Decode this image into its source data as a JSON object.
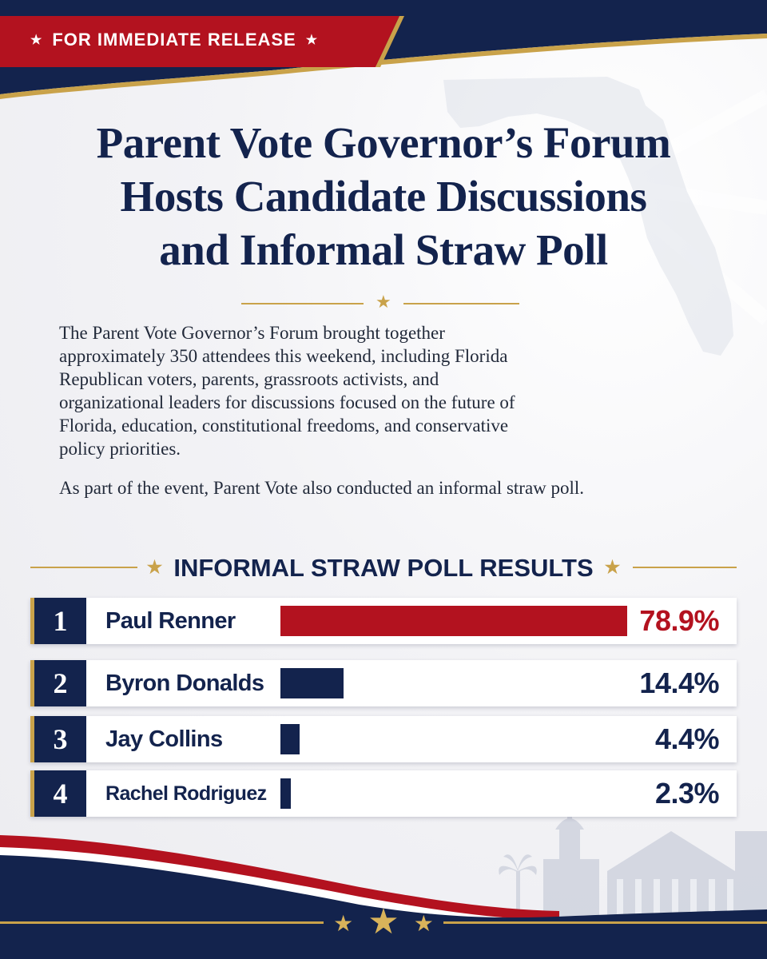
{
  "badge": {
    "label": "FOR IMMEDIATE RELEASE",
    "star": "★"
  },
  "title": {
    "line1": "Parent Vote Governor’s Forum",
    "line2": "Hosts Candidate Discussions",
    "line3": "and Informal Straw Poll"
  },
  "divider_star": "★",
  "intro": {
    "p1_lines": [
      "The Parent Vote Governor’s Forum brought together",
      "approximately 350 attendees this weekend, including Florida",
      "Republican voters, parents, grassroots activists, and",
      "organizational leaders for discussions focused on the future of",
      "Florida, education, constitutional freedoms, and conservative",
      "policy priorities."
    ],
    "p2": "As part of the event, Parent Vote also conducted an informal straw poll."
  },
  "poll": {
    "heading": "INFORMAL STRAW POLL RESULTS",
    "heading_star": "★",
    "results": [
      {
        "rank": "1",
        "name": "Paul Renner",
        "percent_label": "78.9%",
        "value": 78.9,
        "bar_color": "#b3121f",
        "pct_color": "#b3121f"
      },
      {
        "rank": "2",
        "name": "Byron Donalds",
        "percent_label": "14.4%",
        "value": 14.4,
        "bar_color": "#13234d",
        "pct_color": "#13234d"
      },
      {
        "rank": "3",
        "name": "Jay Collins",
        "percent_label": "4.4%",
        "value": 4.4,
        "bar_color": "#13234d",
        "pct_color": "#13234d"
      },
      {
        "rank": "4",
        "name": "Rachel Rodriguez",
        "percent_label": "2.3%",
        "value": 2.3,
        "bar_color": "#13234d",
        "pct_color": "#13234d"
      }
    ]
  },
  "footer": {
    "stars": [
      "★",
      "★",
      "★"
    ]
  },
  "colors": {
    "navy": "#13234d",
    "red": "#b3121f",
    "gold": "#c9a24a"
  }
}
